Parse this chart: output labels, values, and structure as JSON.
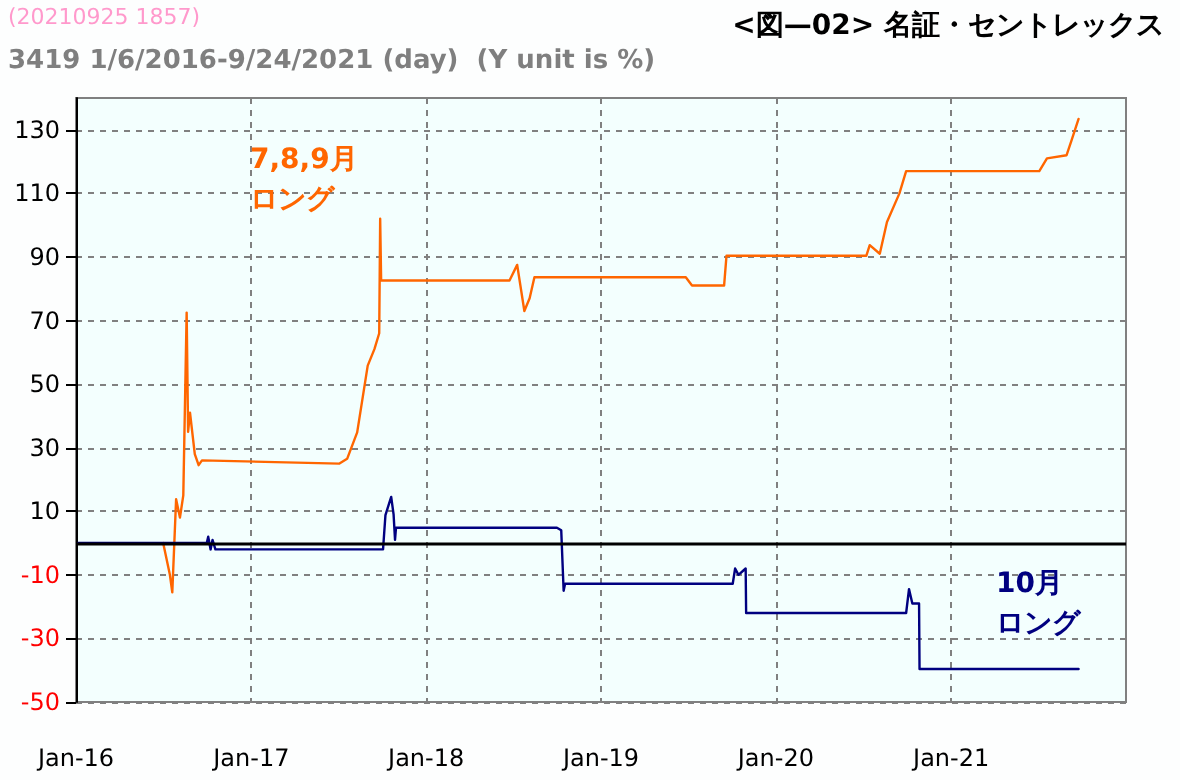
{
  "chart_data": {
    "type": "line",
    "title": "3419 1/6/2016-9/24/2021 (day)  (Y unit is %)",
    "subtitle": "<図—02> 名証・セントレックス",
    "annotations": [
      "(20210925 1857)"
    ],
    "series": [
      {
        "name": "7,8,9月ロング",
        "color": "#ff6600",
        "x": [
          "2016-07-01",
          "2016-07-15",
          "2016-07-20",
          "2016-07-28",
          "2016-08-05",
          "2016-08-12",
          "2016-08-19",
          "2016-08-22",
          "2016-08-26",
          "2016-09-05",
          "2016-09-13",
          "2016-09-20",
          "2017-07-04",
          "2017-07-20",
          "2017-08-10",
          "2017-09-01",
          "2017-09-15",
          "2017-09-25",
          "2017-09-27",
          "2017-09-29",
          "2018-06-24",
          "2018-07-10",
          "2018-07-25",
          "2018-08-05",
          "2018-08-15",
          "2019-06-27",
          "2019-07-10",
          "2019-09-15",
          "2019-09-20",
          "2020-07-08",
          "2020-07-15",
          "2020-08-05",
          "2020-08-20",
          "2020-09-15",
          "2020-09-29",
          "2021-07-04",
          "2021-07-20",
          "2021-08-30",
          "2021-09-10",
          "2021-09-24"
        ],
        "values": [
          0,
          -10,
          -15.5,
          13.8,
          8,
          15,
          72.5,
          35,
          41,
          28,
          24.5,
          26,
          25,
          26.5,
          34.8,
          55.8,
          61,
          66,
          102,
          82.6,
          82.6,
          87.5,
          73,
          77,
          83.6,
          83.6,
          81,
          81,
          90.4,
          90.4,
          93.7,
          91,
          101,
          110,
          117,
          117,
          121,
          122,
          127,
          133.4
        ]
      },
      {
        "name": "10月ロング",
        "color": "#000080",
        "x": [
          "2016-01-06",
          "2016-09-30",
          "2016-10-03",
          "2016-10-08",
          "2016-10-12",
          "2016-10-18",
          "2017-10-03",
          "2017-10-08",
          "2017-10-20",
          "2017-10-25",
          "2017-10-28",
          "2017-10-30",
          "2018-10-01",
          "2018-10-10",
          "2018-10-15",
          "2018-10-18",
          "2019-10-03",
          "2019-10-08",
          "2019-10-15",
          "2019-10-30",
          "2019-10-31",
          "2020-09-29",
          "2020-10-05",
          "2020-10-12",
          "2020-10-26",
          "2020-10-27",
          "2021-09-24"
        ],
        "values": [
          0,
          0,
          2,
          -2,
          1,
          -2,
          -2,
          8.8,
          14.5,
          9,
          1,
          4.8,
          4.8,
          4,
          -15,
          -12.8,
          -12.8,
          -8,
          -10,
          -8,
          -22,
          -22,
          -14.5,
          -19,
          -19,
          -39.6,
          -39.6
        ]
      }
    ],
    "xlim": [
      "2016-01-01",
      "2022-01-01"
    ],
    "xticks": [
      {
        "value": "2016-01-01",
        "label": "Jan-16"
      },
      {
        "value": "2017-01-01",
        "label": "Jan-17"
      },
      {
        "value": "2018-01-01",
        "label": "Jan-18"
      },
      {
        "value": "2019-01-01",
        "label": "Jan-19"
      },
      {
        "value": "2020-01-01",
        "label": "Jan-20"
      },
      {
        "value": "2021-01-01",
        "label": "Jan-21"
      }
    ],
    "ylim": [
      -50,
      140
    ],
    "yticks": [
      -50,
      -30,
      -10,
      10,
      30,
      50,
      70,
      90,
      110,
      130
    ],
    "ref_lines": [
      {
        "axis": "y",
        "value": 0,
        "color": "#000000"
      }
    ],
    "grid": true,
    "legend": false,
    "marker": "none",
    "line_style": "solid"
  }
}
